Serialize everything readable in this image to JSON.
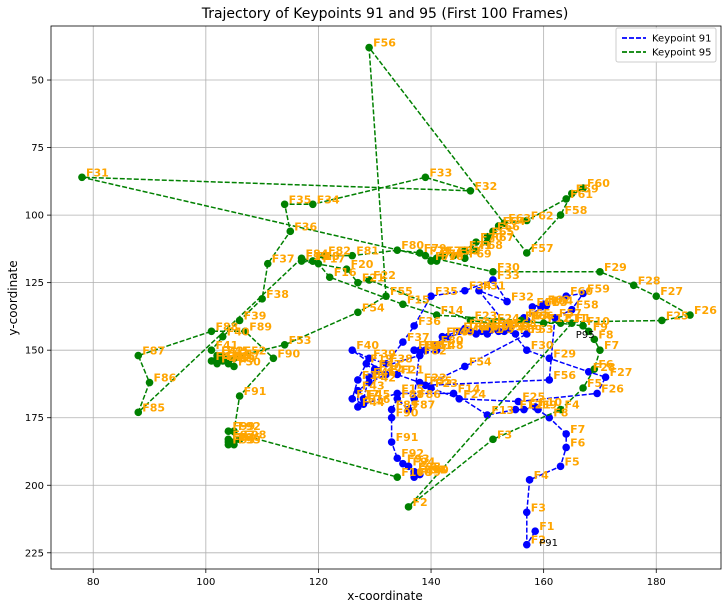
{
  "chart_data": {
    "type": "line",
    "title": "Trajectory of Keypoints 91 and 95 (First 100 Frames)",
    "xlabel": "x-coordinate",
    "ylabel": "y-coordinate",
    "xlim": [
      72.5,
      191.5
    ],
    "ylim": [
      231,
      30
    ],
    "y_inverted": true,
    "xticks": [
      80,
      100,
      120,
      140,
      160,
      180
    ],
    "yticks": [
      50,
      75,
      100,
      125,
      150,
      175,
      200,
      225
    ],
    "grid": true,
    "legend_position": "top-right",
    "series": [
      {
        "name": "Keypoint 91",
        "color": "#0000ff",
        "linestyle": "dashed",
        "end_label": "P91",
        "points": [
          {
            "f": "F1",
            "x": 158.5,
            "y": 217
          },
          {
            "f": "F2",
            "x": 157,
            "y": 222
          },
          {
            "f": "F3",
            "x": 157,
            "y": 210
          },
          {
            "f": "F4",
            "x": 157.5,
            "y": 198
          },
          {
            "f": "F5",
            "x": 163,
            "y": 193
          },
          {
            "f": "F6",
            "x": 164,
            "y": 186
          },
          {
            "f": "F7",
            "x": 164,
            "y": 181
          },
          {
            "f": "F8",
            "x": 161,
            "y": 175
          },
          {
            "f": "F9",
            "x": 159,
            "y": 172
          },
          {
            "f": "F10",
            "x": 158.5,
            "y": 171
          },
          {
            "f": "F11",
            "x": 156.5,
            "y": 172
          },
          {
            "f": "F12",
            "x": 155,
            "y": 172
          },
          {
            "f": "F13",
            "x": 150,
            "y": 174
          },
          {
            "f": "F14",
            "x": 144,
            "y": 166
          },
          {
            "f": "F15",
            "x": 134,
            "y": 166
          },
          {
            "f": "F16",
            "x": 128,
            "y": 170
          },
          {
            "f": "F17",
            "x": 126,
            "y": 168
          },
          {
            "f": "F18",
            "x": 127,
            "y": 161
          },
          {
            "f": "F19",
            "x": 128.5,
            "y": 155
          },
          {
            "f": "F20",
            "x": 130,
            "y": 158
          },
          {
            "f": "F21",
            "x": 134,
            "y": 159
          },
          {
            "f": "F22",
            "x": 138,
            "y": 162
          },
          {
            "f": "F23",
            "x": 140,
            "y": 164
          },
          {
            "f": "F24",
            "x": 145,
            "y": 168
          },
          {
            "f": "F25",
            "x": 155.5,
            "y": 169
          },
          {
            "f": "F26",
            "x": 169.5,
            "y": 166
          },
          {
            "f": "F27",
            "x": 171,
            "y": 160
          },
          {
            "f": "F28",
            "x": 168,
            "y": 158
          },
          {
            "f": "F29",
            "x": 161,
            "y": 153
          },
          {
            "f": "F30",
            "x": 157,
            "y": 150
          },
          {
            "f": "F31",
            "x": 148.5,
            "y": 128
          },
          {
            "f": "F32",
            "x": 153.5,
            "y": 132
          },
          {
            "f": "F33",
            "x": 151,
            "y": 124
          },
          {
            "f": "F34",
            "x": 146,
            "y": 128
          },
          {
            "f": "F35",
            "x": 140,
            "y": 130
          },
          {
            "f": "F36",
            "x": 137,
            "y": 141
          },
          {
            "f": "F37",
            "x": 135,
            "y": 147
          },
          {
            "f": "F38",
            "x": 132,
            "y": 155
          },
          {
            "f": "F39",
            "x": 129,
            "y": 153
          },
          {
            "f": "F40",
            "x": 126,
            "y": 150
          },
          {
            "f": "F41",
            "x": 132,
            "y": 159
          },
          {
            "f": "F42",
            "x": 129,
            "y": 162
          },
          {
            "f": "F43",
            "x": 127,
            "y": 165
          },
          {
            "f": "F44",
            "x": 127,
            "y": 171
          },
          {
            "f": "F45",
            "x": 128,
            "y": 168
          },
          {
            "f": "F46",
            "x": 129,
            "y": 160
          },
          {
            "f": "F47",
            "x": 130,
            "y": 157
          },
          {
            "f": "F48",
            "x": 141,
            "y": 150
          },
          {
            "f": "F49",
            "x": 143,
            "y": 145
          },
          {
            "f": "F50",
            "x": 147,
            "y": 143
          },
          {
            "f": "F51",
            "x": 150,
            "y": 142
          },
          {
            "f": "F52",
            "x": 153,
            "y": 143
          },
          {
            "f": "F53",
            "x": 157,
            "y": 144
          },
          {
            "f": "F54",
            "x": 146,
            "y": 156
          },
          {
            "f": "F55",
            "x": 139,
            "y": 163
          },
          {
            "f": "F56",
            "x": 161,
            "y": 161
          },
          {
            "f": "F57",
            "x": 162,
            "y": 138
          },
          {
            "f": "F58",
            "x": 165,
            "y": 135
          },
          {
            "f": "F59",
            "x": 167,
            "y": 129
          },
          {
            "f": "F60",
            "x": 164,
            "y": 130
          },
          {
            "f": "F61",
            "x": 158,
            "y": 134
          },
          {
            "f": "F62",
            "x": 160,
            "y": 133
          },
          {
            "f": "F63",
            "x": 159.5,
            "y": 134
          },
          {
            "f": "F64",
            "x": 160.5,
            "y": 133.5
          },
          {
            "f": "F65",
            "x": 156.5,
            "y": 138
          },
          {
            "f": "F66",
            "x": 157,
            "y": 139
          },
          {
            "f": "F67",
            "x": 156,
            "y": 139
          },
          {
            "f": "F68",
            "x": 154,
            "y": 142
          },
          {
            "f": "F69",
            "x": 155,
            "y": 144
          },
          {
            "f": "F70",
            "x": 150,
            "y": 142
          },
          {
            "f": "F71",
            "x": 148,
            "y": 144
          },
          {
            "f": "F72",
            "x": 146,
            "y": 142
          },
          {
            "f": "F73",
            "x": 150,
            "y": 144
          },
          {
            "f": "F74",
            "x": 152,
            "y": 143
          },
          {
            "f": "F75",
            "x": 151,
            "y": 142
          },
          {
            "f": "F76",
            "x": 149,
            "y": 143
          },
          {
            "f": "F77",
            "x": 147,
            "y": 143
          },
          {
            "f": "F78",
            "x": 145,
            "y": 143
          },
          {
            "f": "F79",
            "x": 142,
            "y": 145
          },
          {
            "f": "F80",
            "x": 141,
            "y": 148
          },
          {
            "f": "F81",
            "x": 139,
            "y": 150
          },
          {
            "f": "F82",
            "x": 138,
            "y": 152
          },
          {
            "f": "F83",
            "x": 137,
            "y": 150
          },
          {
            "f": "F84",
            "x": 137,
            "y": 150
          },
          {
            "f": "F85",
            "x": 138,
            "y": 150
          },
          {
            "f": "F86",
            "x": 137,
            "y": 168
          },
          {
            "f": "F87",
            "x": 136,
            "y": 172
          },
          {
            "f": "F88",
            "x": 134,
            "y": 168
          },
          {
            "f": "F89",
            "x": 133,
            "y": 172
          },
          {
            "f": "F90",
            "x": 133,
            "y": 175
          },
          {
            "f": "F91",
            "x": 133,
            "y": 184
          },
          {
            "f": "F92",
            "x": 134,
            "y": 190
          },
          {
            "f": "F93",
            "x": 135,
            "y": 192
          },
          {
            "f": "F94",
            "x": 136,
            "y": 193
          },
          {
            "f": "F95",
            "x": 137,
            "y": 195
          },
          {
            "f": "F96",
            "x": 138,
            "y": 196
          },
          {
            "f": "F97",
            "x": 138,
            "y": 196
          },
          {
            "f": "F98",
            "x": 137,
            "y": 195
          },
          {
            "f": "F99",
            "x": 137,
            "y": 197
          },
          {
            "f": "F100",
            "x": 137,
            "y": 196
          }
        ]
      },
      {
        "name": "Keypoint 95",
        "color": "#008000",
        "linestyle": "dashed",
        "end_label": "P95",
        "points": [
          {
            "f": "F1",
            "x": 165,
            "y": 140
          },
          {
            "f": "F2",
            "x": 136,
            "y": 208
          },
          {
            "f": "F3",
            "x": 151,
            "y": 183
          },
          {
            "f": "F4",
            "x": 163,
            "y": 172
          },
          {
            "f": "F5",
            "x": 167,
            "y": 164
          },
          {
            "f": "F6",
            "x": 169,
            "y": 157
          },
          {
            "f": "F7",
            "x": 170,
            "y": 150
          },
          {
            "f": "F8",
            "x": 169,
            "y": 146
          },
          {
            "f": "F9",
            "x": 168,
            "y": 143
          },
          {
            "f": "F10",
            "x": 167,
            "y": 141
          },
          {
            "f": "F11",
            "x": 163,
            "y": 140
          },
          {
            "f": "F12",
            "x": 160,
            "y": 140
          },
          {
            "f": "F13",
            "x": 156,
            "y": 139
          },
          {
            "f": "F14",
            "x": 141,
            "y": 137
          },
          {
            "f": "F15",
            "x": 135,
            "y": 133
          },
          {
            "f": "F16",
            "x": 122,
            "y": 123
          },
          {
            "f": "F17",
            "x": 120,
            "y": 118
          },
          {
            "f": "F18",
            "x": 119,
            "y": 117
          },
          {
            "f": "F19",
            "x": 117,
            "y": 117
          },
          {
            "f": "F20",
            "x": 125,
            "y": 120
          },
          {
            "f": "F21",
            "x": 127,
            "y": 125
          },
          {
            "f": "F22",
            "x": 129,
            "y": 124
          },
          {
            "f": "F23",
            "x": 147,
            "y": 139
          },
          {
            "f": "F24",
            "x": 151,
            "y": 140
          },
          {
            "f": "F25",
            "x": 181,
            "y": 139
          },
          {
            "f": "F26",
            "x": 186,
            "y": 137
          },
          {
            "f": "F27",
            "x": 180,
            "y": 130
          },
          {
            "f": "F28",
            "x": 176,
            "y": 126
          },
          {
            "f": "F29",
            "x": 170,
            "y": 121
          },
          {
            "f": "F30",
            "x": 151,
            "y": 121
          },
          {
            "f": "F31",
            "x": 78,
            "y": 86
          },
          {
            "f": "F32",
            "x": 147,
            "y": 91
          },
          {
            "f": "F33",
            "x": 139,
            "y": 86
          },
          {
            "f": "F34",
            "x": 119,
            "y": 96
          },
          {
            "f": "F35",
            "x": 114,
            "y": 96
          },
          {
            "f": "F36",
            "x": 115,
            "y": 106
          },
          {
            "f": "F37",
            "x": 111,
            "y": 118
          },
          {
            "f": "F38",
            "x": 110,
            "y": 131
          },
          {
            "f": "F39",
            "x": 106,
            "y": 139
          },
          {
            "f": "F40",
            "x": 103,
            "y": 145
          },
          {
            "f": "F41",
            "x": 101,
            "y": 150
          },
          {
            "f": "F42",
            "x": 102,
            "y": 152
          },
          {
            "f": "F43",
            "x": 101,
            "y": 154
          },
          {
            "f": "F44",
            "x": 102,
            "y": 155
          },
          {
            "f": "F45",
            "x": 103,
            "y": 152
          },
          {
            "f": "F46",
            "x": 104,
            "y": 154
          },
          {
            "f": "F47",
            "x": 105,
            "y": 153
          },
          {
            "f": "F48",
            "x": 103,
            "y": 154
          },
          {
            "f": "F49",
            "x": 104,
            "y": 155
          },
          {
            "f": "F50",
            "x": 105,
            "y": 156
          },
          {
            "f": "F51",
            "x": 102,
            "y": 153
          },
          {
            "f": "F52",
            "x": 106,
            "y": 152
          },
          {
            "f": "F53",
            "x": 114,
            "y": 148
          },
          {
            "f": "F54",
            "x": 127,
            "y": 136
          },
          {
            "f": "F55",
            "x": 132,
            "y": 130
          },
          {
            "f": "F56",
            "x": 129,
            "y": 38
          },
          {
            "f": "F57",
            "x": 157,
            "y": 114
          },
          {
            "f": "F58",
            "x": 163,
            "y": 100
          },
          {
            "f": "F59",
            "x": 165,
            "y": 92
          },
          {
            "f": "F60",
            "x": 167,
            "y": 90
          },
          {
            "f": "F61",
            "x": 164,
            "y": 94
          },
          {
            "f": "F62",
            "x": 157,
            "y": 102
          },
          {
            "f": "F63",
            "x": 153,
            "y": 103
          },
          {
            "f": "F64",
            "x": 152,
            "y": 104
          },
          {
            "f": "F65",
            "x": 150,
            "y": 108
          },
          {
            "f": "F66",
            "x": 151,
            "y": 106
          },
          {
            "f": "F67",
            "x": 150,
            "y": 110
          },
          {
            "f": "F68",
            "x": 148,
            "y": 113
          },
          {
            "f": "F69",
            "x": 146,
            "y": 116
          },
          {
            "f": "F70",
            "x": 148,
            "y": 110
          },
          {
            "f": "F71",
            "x": 146,
            "y": 113
          },
          {
            "f": "F72",
            "x": 144,
            "y": 115
          },
          {
            "f": "F73",
            "x": 142,
            "y": 115
          },
          {
            "f": "F74",
            "x": 141,
            "y": 116
          },
          {
            "f": "F75",
            "x": 141,
            "y": 116
          },
          {
            "f": "F76",
            "x": 141,
            "y": 117
          },
          {
            "f": "F77",
            "x": 140,
            "y": 117
          },
          {
            "f": "F78",
            "x": 139,
            "y": 115
          },
          {
            "f": "F79",
            "x": 138,
            "y": 114
          },
          {
            "f": "F80",
            "x": 134,
            "y": 113
          },
          {
            "f": "F81",
            "x": 126,
            "y": 115
          },
          {
            "f": "F82",
            "x": 121,
            "y": 115
          },
          {
            "f": "F83",
            "x": 119,
            "y": 117
          },
          {
            "f": "F84",
            "x": 117,
            "y": 116
          },
          {
            "f": "F85",
            "x": 88,
            "y": 173
          },
          {
            "f": "F86",
            "x": 90,
            "y": 162
          },
          {
            "f": "F87",
            "x": 88,
            "y": 152
          },
          {
            "f": "F88",
            "x": 101,
            "y": 143
          },
          {
            "f": "F89",
            "x": 107,
            "y": 143
          },
          {
            "f": "F90",
            "x": 112,
            "y": 153
          },
          {
            "f": "F91",
            "x": 106,
            "y": 167
          },
          {
            "f": "F92",
            "x": 105,
            "y": 180
          },
          {
            "f": "F93",
            "x": 105,
            "y": 185
          },
          {
            "f": "F94",
            "x": 104,
            "y": 184
          },
          {
            "f": "F95",
            "x": 104,
            "y": 185
          },
          {
            "f": "F96",
            "x": 105,
            "y": 184
          },
          {
            "f": "F97",
            "x": 104,
            "y": 183
          },
          {
            "f": "F98",
            "x": 106,
            "y": 183
          },
          {
            "f": "F99",
            "x": 104,
            "y": 180
          },
          {
            "f": "F100",
            "x": 134,
            "y": 197
          }
        ]
      }
    ]
  }
}
